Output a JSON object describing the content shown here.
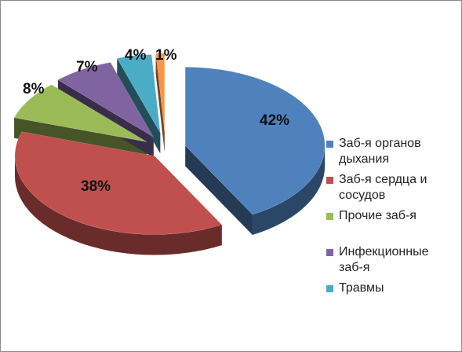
{
  "chart_data": {
    "type": "pie",
    "style": "3d-exploded",
    "categories": [
      "Заб-я органов дыхания",
      "Заб-я сердца и сосудов",
      "Прочие заб-я",
      "Инфекционные заб-я",
      "Травмы",
      ""
    ],
    "legend_lines": [
      [
        "Заб-я органов",
        "дыхания"
      ],
      [
        "Заб-я сердца и",
        "сосудов"
      ],
      [
        "Прочие заб-я"
      ],
      [
        "Инфекционные",
        "заб-я"
      ],
      [
        "Травмы"
      ]
    ],
    "values": [
      42,
      38,
      8,
      7,
      4,
      1
    ],
    "labels": [
      "42%",
      "38%",
      "8%",
      "7%",
      "4%",
      "1%"
    ],
    "colors": [
      "#4f81bd",
      "#c0504d",
      "#9bbb59",
      "#8064a2",
      "#4bacc6",
      "#f79646"
    ],
    "legend_placement": "right"
  }
}
